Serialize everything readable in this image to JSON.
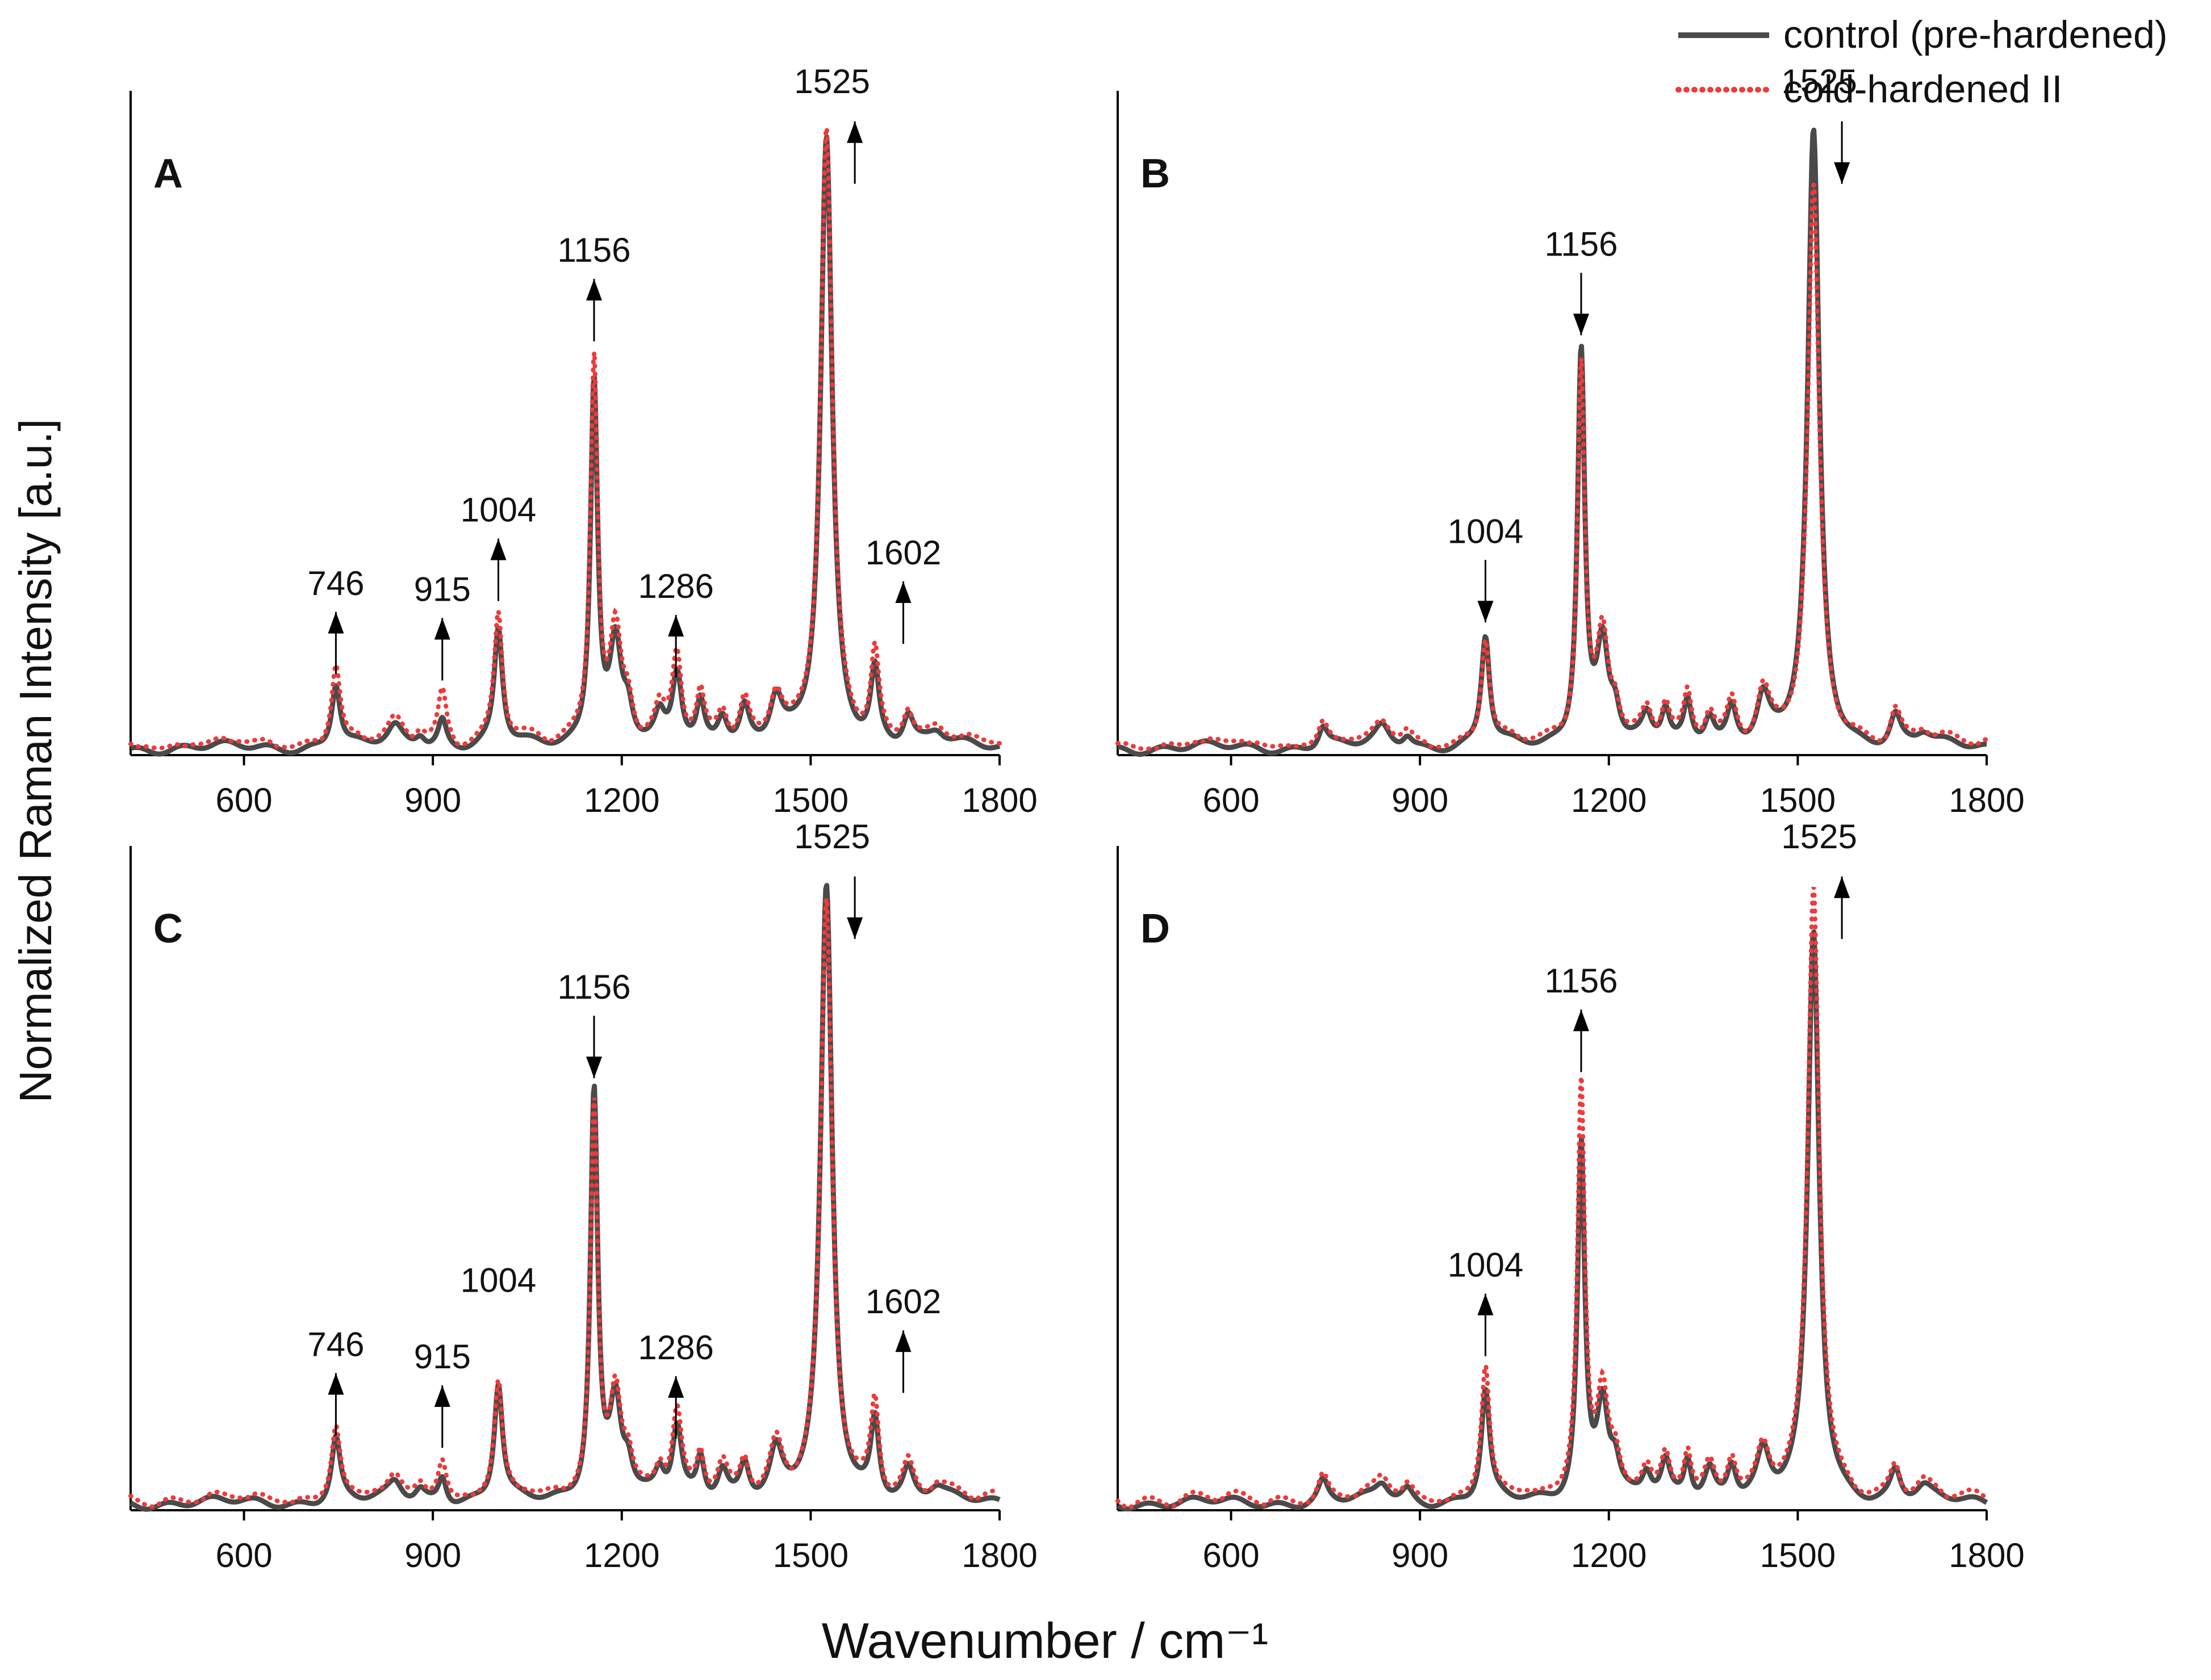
{
  "figure": {
    "ylabel": "Normalized Raman Intensity [a.u.]",
    "xlabel": "Wavenumber / cm⁻¹",
    "legend": {
      "position": "top-right",
      "entries": [
        {
          "label": "control (pre-hardened)",
          "style": "solid",
          "color": "#4a4a4a"
        },
        {
          "label": "cold-hardened II",
          "style": "dotted",
          "color": "#ee3a3a"
        }
      ]
    }
  },
  "chart_data": [
    {
      "type": "line",
      "panel": "A",
      "xlim": [
        420,
        1800
      ],
      "ylim": [
        0,
        1.05
      ],
      "xticks": [
        600,
        900,
        1200,
        1500,
        1800
      ],
      "peaks": [
        {
          "x": 746,
          "control": 0.07,
          "cold": 0.095,
          "dir": "up"
        },
        {
          "x": 915,
          "control": 0.045,
          "cold": 0.085,
          "dir": "up"
        },
        {
          "x": 1004,
          "control": 0.19,
          "cold": 0.215,
          "dir": "up"
        },
        {
          "x": 1156,
          "control": 0.6,
          "cold": 0.64,
          "dir": "up"
        },
        {
          "x": 1286,
          "control": 0.065,
          "cold": 0.09,
          "dir": "up"
        },
        {
          "x": 1525,
          "control": 0.99,
          "cold": 1.0,
          "dir": "up"
        },
        {
          "x": 1602,
          "control": 0.12,
          "cold": 0.145,
          "dir": "up"
        }
      ],
      "labels": [
        {
          "text": "746",
          "x": 746,
          "dir": "up"
        },
        {
          "text": "915",
          "x": 915,
          "dir": "up"
        },
        {
          "text": "1004",
          "x": 1004,
          "dir": "up"
        },
        {
          "text": "1156",
          "x": 1156,
          "dir": "up"
        },
        {
          "text": "1286",
          "x": 1286,
          "dir": "up"
        },
        {
          "text": "1525",
          "x": 1525,
          "dir": "up"
        },
        {
          "text": "1602",
          "x": 1602,
          "dir": "up"
        }
      ]
    },
    {
      "type": "line",
      "panel": "B",
      "xlim": [
        420,
        1800
      ],
      "ylim": [
        0,
        1.05
      ],
      "xticks": [
        600,
        900,
        1200,
        1500,
        1800
      ],
      "peaks": [
        {
          "x": 1004,
          "control": 0.18,
          "cold": 0.17,
          "dir": "down"
        },
        {
          "x": 1156,
          "control": 0.65,
          "cold": 0.62,
          "dir": "down"
        },
        {
          "x": 1525,
          "control": 1.0,
          "cold": 0.9,
          "dir": "down"
        }
      ],
      "labels": [
        {
          "text": "1004",
          "x": 1004,
          "dir": "down"
        },
        {
          "text": "1156",
          "x": 1156,
          "dir": "down"
        },
        {
          "text": "1525",
          "x": 1525,
          "dir": "down"
        }
      ]
    },
    {
      "type": "line",
      "panel": "C",
      "xlim": [
        420,
        1800
      ],
      "ylim": [
        0,
        1.05
      ],
      "xticks": [
        600,
        900,
        1200,
        1500,
        1800
      ],
      "peaks": [
        {
          "x": 746,
          "control": 0.07,
          "cold": 0.085,
          "dir": "up"
        },
        {
          "x": 915,
          "control": 0.045,
          "cold": 0.065,
          "dir": "up"
        },
        {
          "x": 1004,
          "control": 0.19,
          "cold": 0.19,
          "dir": "none"
        },
        {
          "x": 1156,
          "control": 0.67,
          "cold": 0.64,
          "dir": "down"
        },
        {
          "x": 1286,
          "control": 0.065,
          "cold": 0.08,
          "dir": "up"
        },
        {
          "x": 1525,
          "control": 1.0,
          "cold": 0.97,
          "dir": "down"
        },
        {
          "x": 1602,
          "control": 0.13,
          "cold": 0.155,
          "dir": "up"
        }
      ],
      "labels": [
        {
          "text": "746",
          "x": 746,
          "dir": "up"
        },
        {
          "text": "915",
          "x": 915,
          "dir": "up"
        },
        {
          "text": "1004",
          "x": 1004,
          "dir": "none"
        },
        {
          "text": "1156",
          "x": 1156,
          "dir": "down"
        },
        {
          "text": "1286",
          "x": 1286,
          "dir": "up"
        },
        {
          "text": "1525",
          "x": 1525,
          "dir": "down"
        },
        {
          "text": "1602",
          "x": 1602,
          "dir": "up"
        }
      ]
    },
    {
      "type": "line",
      "panel": "D",
      "xlim": [
        420,
        1800
      ],
      "ylim": [
        0,
        1.05
      ],
      "xticks": [
        600,
        900,
        1200,
        1500,
        1800
      ],
      "peaks": [
        {
          "x": 1004,
          "control": 0.18,
          "cold": 0.215,
          "dir": "up"
        },
        {
          "x": 1156,
          "control": 0.58,
          "cold": 0.68,
          "dir": "up"
        },
        {
          "x": 1525,
          "control": 0.93,
          "cold": 1.0,
          "dir": "up"
        }
      ],
      "labels": [
        {
          "text": "1004",
          "x": 1004,
          "dir": "up"
        },
        {
          "text": "1156",
          "x": 1156,
          "dir": "up"
        },
        {
          "text": "1525",
          "x": 1525,
          "dir": "up"
        }
      ]
    }
  ]
}
